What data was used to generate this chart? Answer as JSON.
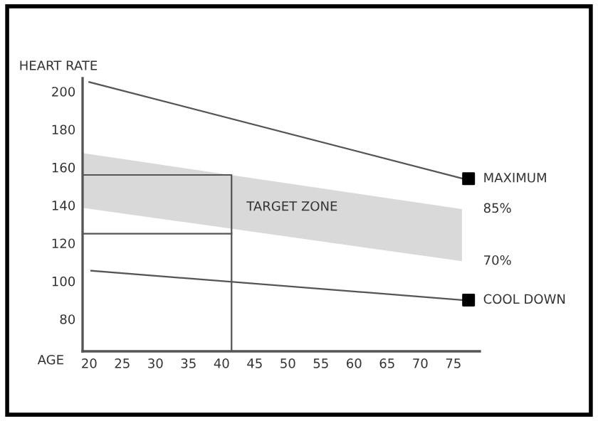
{
  "chart_data": {
    "type": "line",
    "xlabel": "AGE",
    "ylabel": "HEART RATE",
    "xlim": [
      19,
      79
    ],
    "ylim": [
      63,
      207
    ],
    "xticks": [
      20,
      25,
      30,
      35,
      40,
      45,
      50,
      55,
      60,
      65,
      70,
      75
    ],
    "yticks": [
      80,
      100,
      120,
      140,
      160,
      180,
      200
    ],
    "grid": false,
    "legend": false,
    "series": [
      {
        "color": "#d9d9d9",
        "x": [
          19,
          76.3
        ],
        "values": [
          null,
          null
        ],
        "lower": [
          138.7,
          110.5
        ],
        "upper": [
          167.5,
          138
        ]
      },
      {
        "name": "MAXIMUM",
        "color": "#555555",
        "x": [
          20,
          76.5
        ],
        "values": [
          205,
          154
        ]
      },
      {
        "name": "COOL DOWN",
        "color": "#555555",
        "x": [
          20.3,
          76.5
        ],
        "values": [
          105.5,
          90
        ]
      },
      {
        "color": "#555555",
        "x": [
          19,
          41.5,
          41.5
        ],
        "values": [
          156,
          156,
          63
        ]
      },
      {
        "color": "#555555",
        "x": [
          19,
          41.5
        ],
        "values": [
          125,
          125
        ]
      },
      {
        "type": "scatter",
        "color": "#000000",
        "marker": "square",
        "x": [
          77.3,
          77.3
        ],
        "values": [
          154,
          90
        ]
      }
    ],
    "annotations": [
      "TARGET ZONE",
      "85%",
      "70%"
    ]
  }
}
